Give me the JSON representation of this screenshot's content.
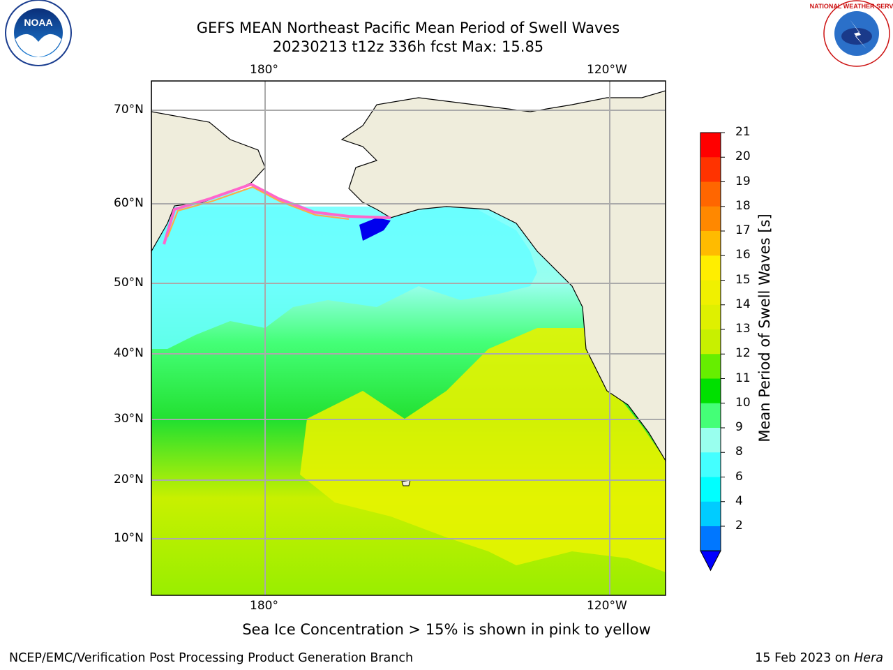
{
  "title": {
    "line1": "GEFS MEAN Northeast Pacific Mean Period of Swell Waves",
    "line2": "20230213 t12z 336h fcst   Max: 15.85"
  },
  "map": {
    "lon_labels_top": [
      "180°",
      "120°W"
    ],
    "lon_labels_bottom": [
      "180°",
      "120°W"
    ],
    "lat_labels": [
      "70°N",
      "60°N",
      "50°N",
      "40°N",
      "30°N",
      "20°N",
      "10°N"
    ],
    "land_color": "#efeddc",
    "ice_colors": [
      "#ff66cc",
      "#ffaa44",
      "#ffee22"
    ]
  },
  "colorbar": {
    "label": "Mean Period of Swell Waves [s]",
    "ticks": [
      "21",
      "20",
      "19",
      "18",
      "17",
      "16",
      "15",
      "14",
      "13",
      "12",
      "11",
      "10",
      "9",
      "8",
      "6",
      "4",
      "2"
    ],
    "colors": [
      "#ff0000",
      "#ff3300",
      "#ff6600",
      "#ff8800",
      "#ffbb00",
      "#ffee00",
      "#f0f000",
      "#dff000",
      "#c8f000",
      "#66ee00",
      "#00e000",
      "#44ff77",
      "#99ffee",
      "#44ffff",
      "#00ffff",
      "#00ccff",
      "#0077ff"
    ],
    "extend_color": "#0000ff"
  },
  "note": "Sea Ice Concentration > 15% is shown in pink to yellow",
  "footer": {
    "left": "NCEP/EMC/Verification Post Processing Product Generation Branch",
    "right_prefix": "15 Feb 2023 on ",
    "right_host": "Hera"
  },
  "logos": {
    "noaa_text": "NOAA",
    "nws_text": "NATIONAL WEATHER SERVICE"
  }
}
